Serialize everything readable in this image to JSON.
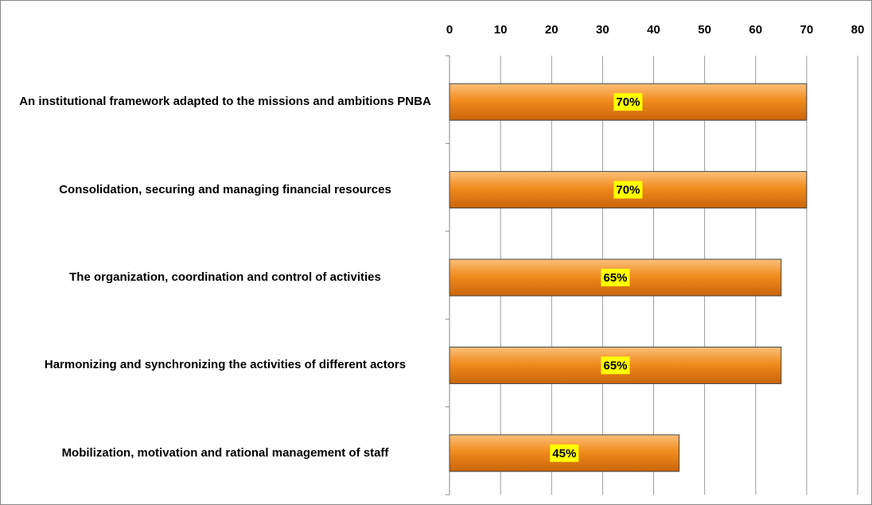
{
  "chart_data": {
    "type": "bar",
    "orientation": "horizontal",
    "categories": [
      "An institutional framework adapted to the missions and ambitions PNBA",
      "Consolidation, securing and managing financial resources",
      "The organization, coordination and control of activities",
      "Harmonizing and synchronizing the activities of different actors",
      "Mobilization, motivation and rational management of staff"
    ],
    "values": [
      70,
      70,
      65,
      65,
      45
    ],
    "value_labels": [
      "70%",
      "70%",
      "65%",
      "65%",
      "45%"
    ],
    "color": "#f28c1e",
    "xlim": [
      0,
      80
    ],
    "xticks": [
      0,
      10,
      20,
      30,
      40,
      50,
      60,
      70,
      80
    ],
    "grid": true
  }
}
